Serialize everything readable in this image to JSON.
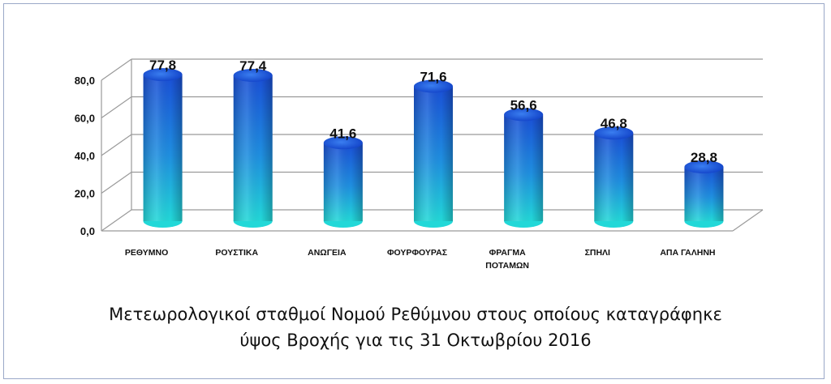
{
  "chart_data": {
    "type": "bar",
    "style": "3d-cylinder",
    "categories": [
      "ΡΕΘΥΜΝΟ",
      "ΡΟΥΣΤΙΚΑ",
      "ΑΝΩΓΕΙΑ",
      "ΦΟΥΡΦΟΥΡΑΣ",
      [
        "ΦΡΑΓΜΑ",
        "ΠΟΤΑΜΩΝ"
      ],
      "ΣΠΗΛΙ",
      "ΑΠΑ ΓΑΛΗΝΗ"
    ],
    "values": [
      77.8,
      77.4,
      41.6,
      71.6,
      56.6,
      46.8,
      28.8
    ],
    "data_labels": [
      "77,8",
      "77,4",
      "41,6",
      "71,6",
      "56,6",
      "46,8",
      "28,8"
    ],
    "yticks": [
      "0,0",
      "20,0",
      "40,0",
      "60,0",
      "80,0"
    ],
    "ylim": [
      0,
      80
    ],
    "grid": true,
    "legend": "none",
    "colors": {
      "bar_top": "#1a4fd6",
      "bar_bottom": "#22d8d8",
      "grid": "#9a9a9a"
    }
  },
  "caption": {
    "line1": "Μετεωρολογικοί σταθμοί Νομού Ρεθύμνου στους οποίους καταγράφηκε",
    "line2": "ύψος Βροχής για τις 31 Οκτωβρίου 2016"
  }
}
